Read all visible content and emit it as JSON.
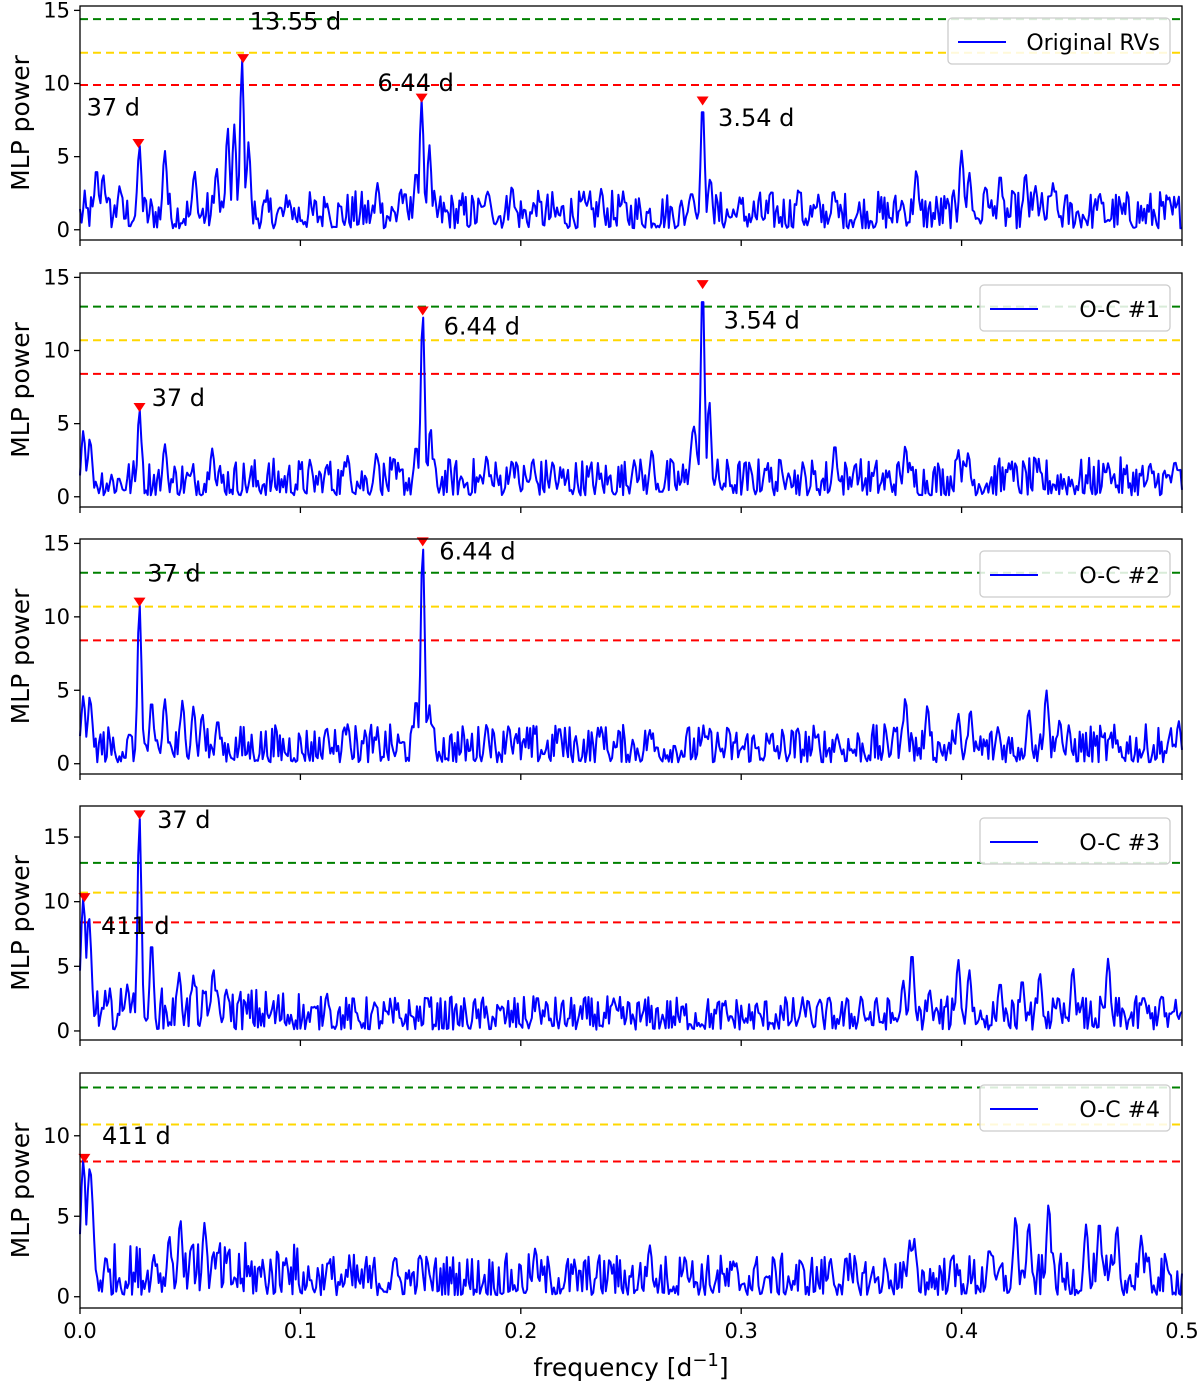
{
  "chart_data": {
    "type": "line",
    "xlabel": "frequency [d",
    "xlabel_sup": "−1",
    "xlabel_suffix": "]",
    "xlim": [
      0.0,
      0.5
    ],
    "xticks": [
      "0.0",
      "0.1",
      "0.2",
      "0.3",
      "0.4",
      "0.5"
    ],
    "ylabel": "MLP power",
    "line_color": "#0000ff",
    "threshold_colors": {
      "high": "#008000",
      "mid": "#ffd700",
      "low": "#ff0000"
    },
    "marker_color": "#ff0000",
    "panels": [
      {
        "legend": "Original RVs",
        "ylim": [
          -0.7,
          15.3
        ],
        "yticks": [
          "0",
          "5",
          "10",
          "15"
        ],
        "thresholds": {
          "high": 14.4,
          "mid": 12.1,
          "low": 9.9
        },
        "peaks": [
          {
            "x": 0.0075,
            "y": 4.2,
            "w": 0.001
          },
          {
            "x": 0.0105,
            "y": 3.8,
            "w": 0.001
          },
          {
            "x": 0.018,
            "y": 3.0,
            "w": 0.001
          },
          {
            "x": 0.027,
            "y": 5.8,
            "w": 0.0009
          },
          {
            "x": 0.0385,
            "y": 5.4,
            "w": 0.001
          },
          {
            "x": 0.052,
            "y": 4.0,
            "w": 0.001
          },
          {
            "x": 0.062,
            "y": 4.2,
            "w": 0.001
          },
          {
            "x": 0.067,
            "y": 7.0,
            "w": 0.0009
          },
          {
            "x": 0.07,
            "y": 7.2,
            "w": 0.0009
          },
          {
            "x": 0.0735,
            "y": 11.6,
            "w": 0.0009
          },
          {
            "x": 0.0765,
            "y": 6.0,
            "w": 0.0009
          },
          {
            "x": 0.095,
            "y": 2.0,
            "w": 0.001
          },
          {
            "x": 0.112,
            "y": 1.8,
            "w": 0.001
          },
          {
            "x": 0.135,
            "y": 3.2,
            "w": 0.001
          },
          {
            "x": 0.1455,
            "y": 2.8,
            "w": 0.001
          },
          {
            "x": 0.1525,
            "y": 4.0,
            "w": 0.001
          },
          {
            "x": 0.155,
            "y": 8.9,
            "w": 0.0009
          },
          {
            "x": 0.1585,
            "y": 5.8,
            "w": 0.0009
          },
          {
            "x": 0.185,
            "y": 2.6,
            "w": 0.0015
          },
          {
            "x": 0.196,
            "y": 3.0,
            "w": 0.001
          },
          {
            "x": 0.206,
            "y": 1.8,
            "w": 0.001
          },
          {
            "x": 0.228,
            "y": 2.1,
            "w": 0.001
          },
          {
            "x": 0.2365,
            "y": 2.8,
            "w": 0.001
          },
          {
            "x": 0.2455,
            "y": 1.8,
            "w": 0.001
          },
          {
            "x": 0.2775,
            "y": 2.5,
            "w": 0.0015
          },
          {
            "x": 0.2825,
            "y": 8.7,
            "w": 0.0009
          },
          {
            "x": 0.286,
            "y": 3.6,
            "w": 0.0009
          },
          {
            "x": 0.299,
            "y": 1.7,
            "w": 0.001
          },
          {
            "x": 0.326,
            "y": 2.8,
            "w": 0.001
          },
          {
            "x": 0.342,
            "y": 2.6,
            "w": 0.001
          },
          {
            "x": 0.373,
            "y": 2.0,
            "w": 0.001
          },
          {
            "x": 0.3795,
            "y": 4.1,
            "w": 0.001
          },
          {
            "x": 0.4,
            "y": 5.4,
            "w": 0.001
          },
          {
            "x": 0.4035,
            "y": 3.9,
            "w": 0.001
          },
          {
            "x": 0.411,
            "y": 3.0,
            "w": 0.001
          },
          {
            "x": 0.4175,
            "y": 3.8,
            "w": 0.001
          },
          {
            "x": 0.429,
            "y": 3.9,
            "w": 0.001
          },
          {
            "x": 0.4335,
            "y": 3.0,
            "w": 0.001
          },
          {
            "x": 0.4415,
            "y": 3.2,
            "w": 0.001
          },
          {
            "x": 0.4625,
            "y": 2.4,
            "w": 0.001
          }
        ],
        "markers": [
          {
            "x": 0.0265,
            "y": 5.8,
            "label": "37 d",
            "lx": 0.003,
            "ly": 7.8
          },
          {
            "x": 0.074,
            "y": 11.6,
            "label": "13.55 d",
            "lx": 0.077,
            "ly": 13.7
          },
          {
            "x": 0.155,
            "y": 8.9,
            "label": "6.44 d",
            "lx": 0.135,
            "ly": 9.5
          },
          {
            "x": 0.2825,
            "y": 8.7,
            "label": "3.54 d",
            "lx": 0.2895,
            "ly": 7.1
          }
        ]
      },
      {
        "legend": "O-C #1",
        "ylim": [
          -0.7,
          15.3
        ],
        "yticks": [
          "0",
          "5",
          "10",
          "15"
        ],
        "thresholds": {
          "high": 13.0,
          "mid": 10.7,
          "low": 8.4
        },
        "peaks": [
          {
            "x": 0.0015,
            "y": 4.5,
            "w": 0.001
          },
          {
            "x": 0.0045,
            "y": 4.0,
            "w": 0.001
          },
          {
            "x": 0.027,
            "y": 6.0,
            "w": 0.0009
          },
          {
            "x": 0.0385,
            "y": 3.6,
            "w": 0.001
          },
          {
            "x": 0.06,
            "y": 3.3,
            "w": 0.001
          },
          {
            "x": 0.112,
            "y": 2.2,
            "w": 0.001
          },
          {
            "x": 0.1215,
            "y": 2.8,
            "w": 0.001
          },
          {
            "x": 0.1345,
            "y": 3.0,
            "w": 0.001
          },
          {
            "x": 0.1525,
            "y": 3.5,
            "w": 0.001
          },
          {
            "x": 0.1555,
            "y": 12.6,
            "w": 0.0009
          },
          {
            "x": 0.159,
            "y": 4.8,
            "w": 0.0009
          },
          {
            "x": 0.1845,
            "y": 2.8,
            "w": 0.001
          },
          {
            "x": 0.196,
            "y": 2.5,
            "w": 0.001
          },
          {
            "x": 0.2055,
            "y": 2.6,
            "w": 0.001
          },
          {
            "x": 0.2145,
            "y": 2.4,
            "w": 0.001
          },
          {
            "x": 0.2515,
            "y": 2.5,
            "w": 0.001
          },
          {
            "x": 0.2595,
            "y": 3.2,
            "w": 0.001
          },
          {
            "x": 0.2785,
            "y": 4.8,
            "w": 0.0015
          },
          {
            "x": 0.2825,
            "y": 14.4,
            "w": 0.0009
          },
          {
            "x": 0.2855,
            "y": 6.6,
            "w": 0.0009
          },
          {
            "x": 0.311,
            "y": 2.0,
            "w": 0.001
          },
          {
            "x": 0.3215,
            "y": 1.6,
            "w": 0.001
          },
          {
            "x": 0.3425,
            "y": 3.6,
            "w": 0.001
          },
          {
            "x": 0.3515,
            "y": 2.1,
            "w": 0.001
          },
          {
            "x": 0.3745,
            "y": 3.5,
            "w": 0.001
          },
          {
            "x": 0.3985,
            "y": 3.2,
            "w": 0.001
          },
          {
            "x": 0.403,
            "y": 3.0,
            "w": 0.001
          },
          {
            "x": 0.4215,
            "y": 2.3,
            "w": 0.001
          },
          {
            "x": 0.4665,
            "y": 2.3,
            "w": 0.001
          },
          {
            "x": 0.4965,
            "y": 2.3,
            "w": 0.001
          }
        ],
        "markers": [
          {
            "x": 0.027,
            "y": 6.0,
            "label": "37 d",
            "lx": 0.0325,
            "ly": 6.2
          },
          {
            "x": 0.1555,
            "y": 12.6,
            "label": "6.44 d",
            "lx": 0.165,
            "ly": 11.1
          },
          {
            "x": 0.2825,
            "y": 14.4,
            "label": "3.54 d",
            "lx": 0.292,
            "ly": 11.5
          }
        ]
      },
      {
        "legend": "O-C #2",
        "ylim": [
          -0.7,
          15.3
        ],
        "yticks": [
          "0",
          "5",
          "10",
          "15"
        ],
        "thresholds": {
          "high": 13.0,
          "mid": 10.7,
          "low": 8.4
        },
        "peaks": [
          {
            "x": 0.0015,
            "y": 4.6,
            "w": 0.001
          },
          {
            "x": 0.0045,
            "y": 4.6,
            "w": 0.001
          },
          {
            "x": 0.027,
            "y": 10.9,
            "w": 0.0009
          },
          {
            "x": 0.0325,
            "y": 4.3,
            "w": 0.001
          },
          {
            "x": 0.0385,
            "y": 4.4,
            "w": 0.001
          },
          {
            "x": 0.0465,
            "y": 4.3,
            "w": 0.001
          },
          {
            "x": 0.0515,
            "y": 3.9,
            "w": 0.001
          },
          {
            "x": 0.0555,
            "y": 3.4,
            "w": 0.001
          },
          {
            "x": 0.0625,
            "y": 3.0,
            "w": 0.001
          },
          {
            "x": 0.112,
            "y": 2.4,
            "w": 0.001
          },
          {
            "x": 0.1215,
            "y": 2.7,
            "w": 0.001
          },
          {
            "x": 0.1525,
            "y": 4.4,
            "w": 0.001
          },
          {
            "x": 0.1555,
            "y": 15.0,
            "w": 0.0009
          },
          {
            "x": 0.1585,
            "y": 4.0,
            "w": 0.0009
          },
          {
            "x": 0.1845,
            "y": 2.7,
            "w": 0.001
          },
          {
            "x": 0.1945,
            "y": 2.6,
            "w": 0.001
          },
          {
            "x": 0.2175,
            "y": 2.5,
            "w": 0.001
          },
          {
            "x": 0.2365,
            "y": 2.5,
            "w": 0.001
          },
          {
            "x": 0.2585,
            "y": 2.3,
            "w": 0.001
          },
          {
            "x": 0.2845,
            "y": 1.9,
            "w": 0.001
          },
          {
            "x": 0.3435,
            "y": 2.0,
            "w": 0.001
          },
          {
            "x": 0.3695,
            "y": 2.5,
            "w": 0.001
          },
          {
            "x": 0.3745,
            "y": 4.5,
            "w": 0.001
          },
          {
            "x": 0.3845,
            "y": 4.0,
            "w": 0.001
          },
          {
            "x": 0.3985,
            "y": 3.4,
            "w": 0.001
          },
          {
            "x": 0.404,
            "y": 3.7,
            "w": 0.001
          },
          {
            "x": 0.4165,
            "y": 2.5,
            "w": 0.001
          },
          {
            "x": 0.4305,
            "y": 3.7,
            "w": 0.001
          },
          {
            "x": 0.4385,
            "y": 5.0,
            "w": 0.001
          },
          {
            "x": 0.4445,
            "y": 3.0,
            "w": 0.001
          },
          {
            "x": 0.4985,
            "y": 2.9,
            "w": 0.001
          }
        ],
        "markers": [
          {
            "x": 0.027,
            "y": 10.9,
            "label": "37 d",
            "lx": 0.0305,
            "ly": 12.4
          },
          {
            "x": 0.1555,
            "y": 15.0,
            "label": "6.44 d",
            "lx": 0.163,
            "ly": 13.9
          }
        ]
      },
      {
        "legend": "O-C #3",
        "ylim": [
          -0.7,
          17.4
        ],
        "yticks": [
          "0",
          "5",
          "10",
          "15"
        ],
        "thresholds": {
          "high": 13.0,
          "mid": 10.7,
          "low": 8.4
        },
        "peaks": [
          {
            "x": 0.0015,
            "y": 10.2,
            "w": 0.0012
          },
          {
            "x": 0.004,
            "y": 8.9,
            "w": 0.0012
          },
          {
            "x": 0.0215,
            "y": 3.6,
            "w": 0.001
          },
          {
            "x": 0.027,
            "y": 16.6,
            "w": 0.0009
          },
          {
            "x": 0.0325,
            "y": 7.0,
            "w": 0.0009
          },
          {
            "x": 0.045,
            "y": 4.5,
            "w": 0.001
          },
          {
            "x": 0.0515,
            "y": 4.3,
            "w": 0.001
          },
          {
            "x": 0.0605,
            "y": 4.8,
            "w": 0.001
          },
          {
            "x": 0.0665,
            "y": 3.2,
            "w": 0.001
          },
          {
            "x": 0.112,
            "y": 2.9,
            "w": 0.001
          },
          {
            "x": 0.1575,
            "y": 2.7,
            "w": 0.001
          },
          {
            "x": 0.2075,
            "y": 2.7,
            "w": 0.001
          },
          {
            "x": 0.3305,
            "y": 2.3,
            "w": 0.001
          },
          {
            "x": 0.3545,
            "y": 2.7,
            "w": 0.001
          },
          {
            "x": 0.3735,
            "y": 3.9,
            "w": 0.001
          },
          {
            "x": 0.3775,
            "y": 6.1,
            "w": 0.001
          },
          {
            "x": 0.3855,
            "y": 3.2,
            "w": 0.001
          },
          {
            "x": 0.3985,
            "y": 5.5,
            "w": 0.001
          },
          {
            "x": 0.4035,
            "y": 4.7,
            "w": 0.001
          },
          {
            "x": 0.4175,
            "y": 3.8,
            "w": 0.001
          },
          {
            "x": 0.4275,
            "y": 4.0,
            "w": 0.001
          },
          {
            "x": 0.4355,
            "y": 4.5,
            "w": 0.001
          },
          {
            "x": 0.4505,
            "y": 4.9,
            "w": 0.001
          },
          {
            "x": 0.4665,
            "y": 5.6,
            "w": 0.001
          },
          {
            "x": 0.4825,
            "y": 2.7,
            "w": 0.001
          },
          {
            "x": 0.4905,
            "y": 2.7,
            "w": 0.001
          }
        ],
        "markers": [
          {
            "x": 0.002,
            "y": 10.2,
            "label": "411 d",
            "lx": 0.0095,
            "ly": 7.5
          },
          {
            "x": 0.027,
            "y": 16.6,
            "label": "37 d",
            "lx": 0.035,
            "ly": 15.7
          }
        ]
      },
      {
        "legend": "O-C #4",
        "ylim": [
          -0.7,
          13.9
        ],
        "yticks": [
          "0",
          "5",
          "10"
        ],
        "thresholds": {
          "high": 13.0,
          "mid": 10.7,
          "low": 8.4
        },
        "peaks": [
          {
            "x": 0.0015,
            "y": 8.5,
            "w": 0.0012
          },
          {
            "x": 0.0045,
            "y": 8.0,
            "w": 0.0015
          },
          {
            "x": 0.0335,
            "y": 2.6,
            "w": 0.001
          },
          {
            "x": 0.0405,
            "y": 3.8,
            "w": 0.001
          },
          {
            "x": 0.0455,
            "y": 4.8,
            "w": 0.001
          },
          {
            "x": 0.0505,
            "y": 3.2,
            "w": 0.001
          },
          {
            "x": 0.0565,
            "y": 4.6,
            "w": 0.001
          },
          {
            "x": 0.0625,
            "y": 2.9,
            "w": 0.001
          },
          {
            "x": 0.0935,
            "y": 2.4,
            "w": 0.001
          },
          {
            "x": 0.1125,
            "y": 2.2,
            "w": 0.001
          },
          {
            "x": 0.1425,
            "y": 2.3,
            "w": 0.001
          },
          {
            "x": 0.1545,
            "y": 2.6,
            "w": 0.001
          },
          {
            "x": 0.2065,
            "y": 3.0,
            "w": 0.001
          },
          {
            "x": 0.2405,
            "y": 2.2,
            "w": 0.001
          },
          {
            "x": 0.2585,
            "y": 3.2,
            "w": 0.001
          },
          {
            "x": 0.2745,
            "y": 2.5,
            "w": 0.001
          },
          {
            "x": 0.3405,
            "y": 2.4,
            "w": 0.001
          },
          {
            "x": 0.3655,
            "y": 2.0,
            "w": 0.001
          },
          {
            "x": 0.3765,
            "y": 3.5,
            "w": 0.001
          },
          {
            "x": 0.3785,
            "y": 3.6,
            "w": 0.001
          },
          {
            "x": 0.3955,
            "y": 2.5,
            "w": 0.001
          },
          {
            "x": 0.4125,
            "y": 3.0,
            "w": 0.001
          },
          {
            "x": 0.4245,
            "y": 5.0,
            "w": 0.001
          },
          {
            "x": 0.4305,
            "y": 4.6,
            "w": 0.001
          },
          {
            "x": 0.4395,
            "y": 5.8,
            "w": 0.001
          },
          {
            "x": 0.4565,
            "y": 4.5,
            "w": 0.001
          },
          {
            "x": 0.4625,
            "y": 4.7,
            "w": 0.001
          },
          {
            "x": 0.4705,
            "y": 4.4,
            "w": 0.001
          },
          {
            "x": 0.4815,
            "y": 3.8,
            "w": 0.001
          }
        ],
        "markers": [
          {
            "x": 0.002,
            "y": 8.5,
            "label": "411 d",
            "lx": 0.01,
            "ly": 9.5
          }
        ]
      }
    ]
  }
}
